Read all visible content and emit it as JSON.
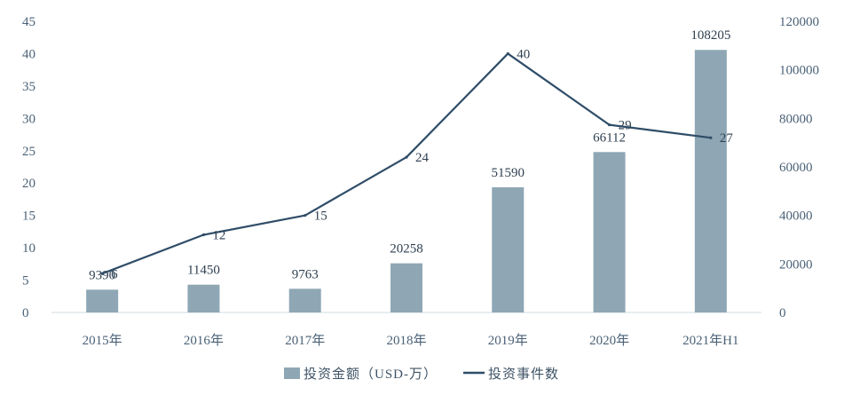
{
  "chart_data": {
    "type": "bar",
    "categories": [
      "2015年",
      "2016年",
      "2017年",
      "2018年",
      "2019年",
      "2020年",
      "2021年H1"
    ],
    "series": [
      {
        "name": "投资金额（USD-万）",
        "type": "bar",
        "axis": "right",
        "values": [
          9390,
          11450,
          9763,
          20258,
          51590,
          66112,
          108205
        ],
        "color": "#8fa7b4"
      },
      {
        "name": "投资事件数",
        "type": "line",
        "axis": "left",
        "values": [
          6,
          12,
          15,
          24,
          40,
          29,
          27
        ],
        "color": "#2f4d68"
      }
    ],
    "y_left": {
      "min": 0,
      "max": 45,
      "ticks": [
        "0",
        "5",
        "10",
        "15",
        "20",
        "25",
        "30",
        "35",
        "40",
        "45"
      ]
    },
    "y_right": {
      "min": 0,
      "max": 120000,
      "ticks": [
        "0",
        "20000",
        "40000",
        "60000",
        "80000",
        "100000",
        "120000"
      ]
    },
    "legend_position": "bottom",
    "grid": false,
    "title": "",
    "xlabel": "",
    "ylabel": ""
  }
}
